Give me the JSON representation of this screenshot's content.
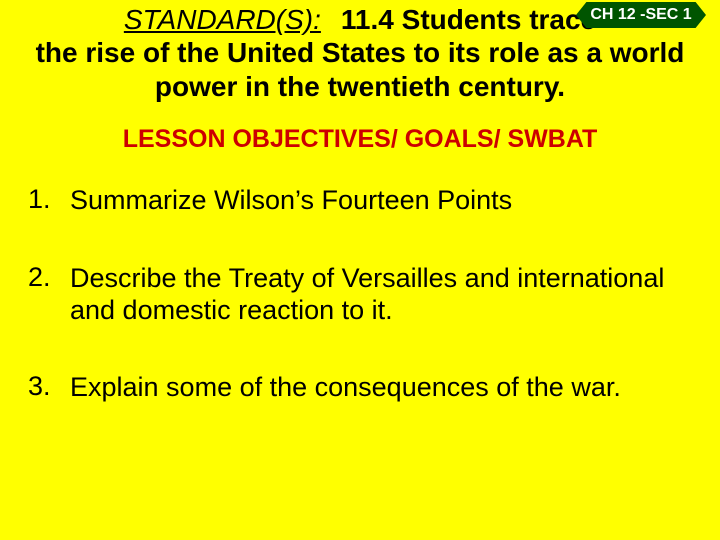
{
  "header": {
    "standard_label": "STANDARD(S):",
    "standard_line1": "11.4 Students trace",
    "standard_continuation": "the rise of the United States to its role as a world power in the twentieth century.",
    "chapter_badge": "CH 12 -SEC 1"
  },
  "objectives": {
    "heading": "LESSON OBJECTIVES/ GOALS/ SWBAT",
    "items": [
      {
        "num": "1.",
        "text": "Summarize Wilson’s Fourteen Points"
      },
      {
        "num": "2.",
        "text": "Describe the Treaty of Versailles and international and domestic reaction to it."
      },
      {
        "num": "3.",
        "text": "Explain some of the consequences of the war."
      }
    ]
  },
  "colors": {
    "background": "#ffff00",
    "badge_bg": "#005500",
    "badge_text": "#ffffff",
    "heading_red": "#cc0000",
    "body_text": "#000000"
  },
  "typography": {
    "standard_fontsize": 28,
    "objectives_heading_fontsize": 25,
    "objective_item_fontsize": 27,
    "badge_fontsize": 16
  }
}
